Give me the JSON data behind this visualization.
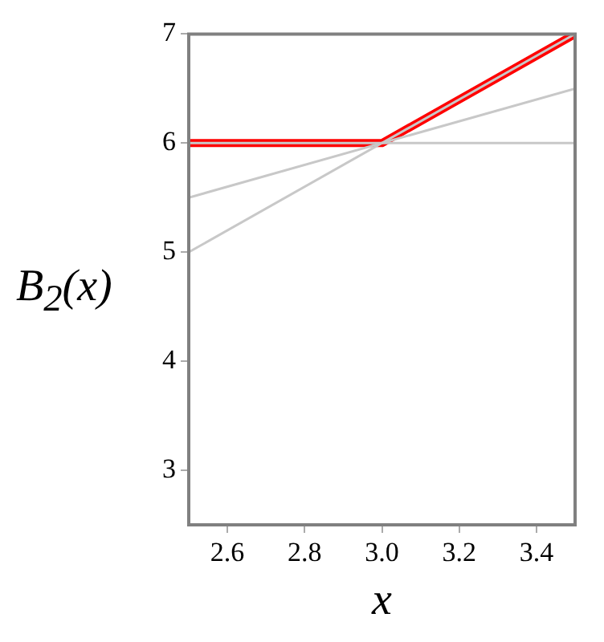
{
  "chart_data": {
    "type": "line",
    "xlabel": "x",
    "ylabel": "B$_{2}$(x)",
    "xlim": [
      2.5,
      3.5
    ],
    "xticks": [
      {
        "value": 2.6,
        "label": "2.6"
      },
      {
        "value": 2.8,
        "label": "2.8"
      },
      {
        "value": 3.0,
        "label": "3.0"
      },
      {
        "value": 3.2,
        "label": "3.2"
      },
      {
        "value": 3.4,
        "label": "3.4"
      }
    ],
    "ylim": [
      2.5,
      7
    ],
    "yticks": [
      3,
      4,
      5,
      6,
      7
    ],
    "grid": false,
    "legend": false,
    "marker": "none",
    "line_style": "solid",
    "series": [
      {
        "color": "#c8c8c8",
        "x": [
          2.5,
          3.5
        ],
        "values": [
          6,
          6
        ]
      },
      {
        "color": "#c8c8c8",
        "x": [
          2.5,
          3.5
        ],
        "values": [
          5.5,
          6.5
        ]
      },
      {
        "color": "#c8c8c8",
        "x": [
          2.5,
          3.5
        ],
        "values": [
          5,
          7
        ]
      },
      {
        "color": "#ff0000",
        "x": [
          2.5,
          3.0,
          3.5
        ],
        "values": [
          6,
          6,
          7
        ]
      }
    ]
  }
}
